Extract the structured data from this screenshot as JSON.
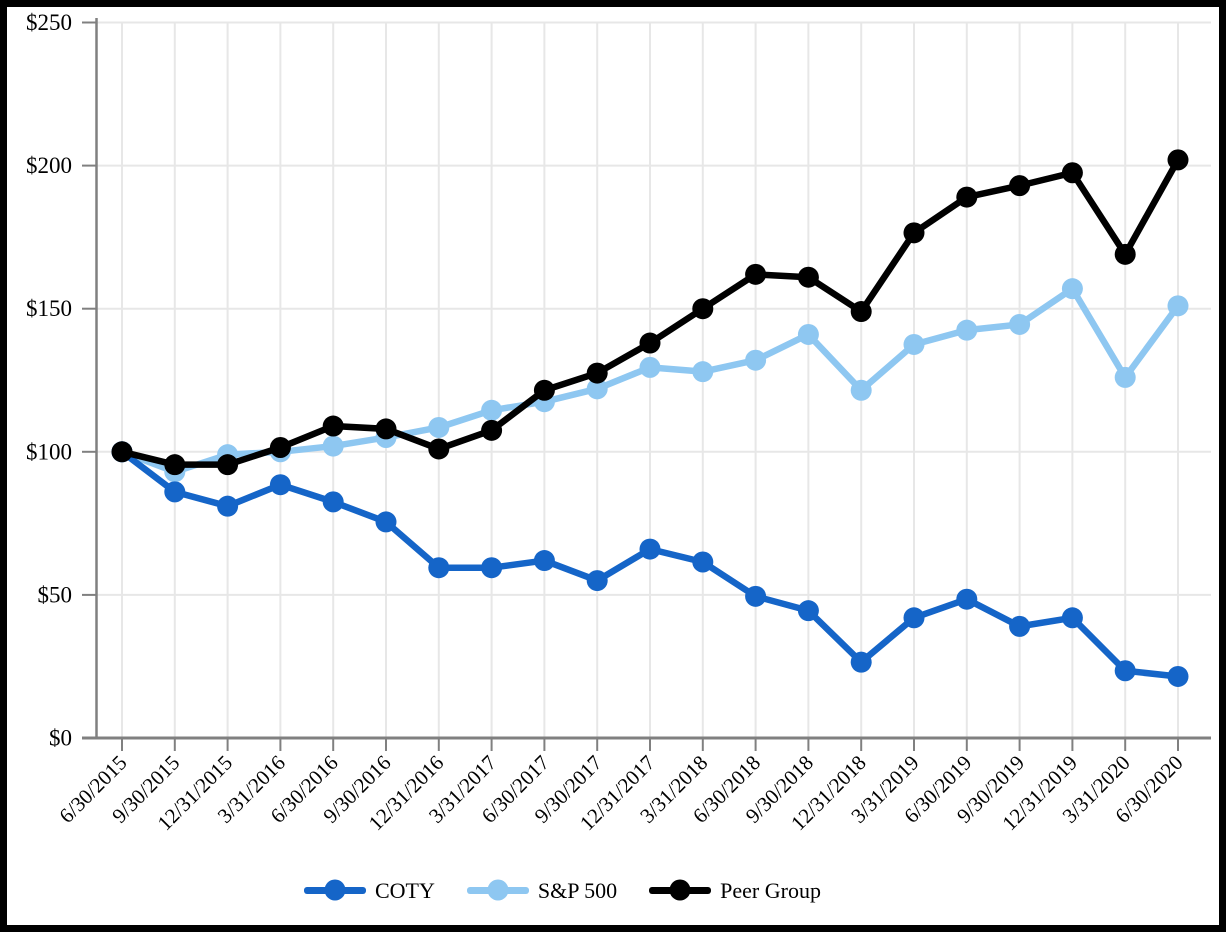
{
  "chart_data": {
    "type": "line",
    "title": "",
    "xlabel": "",
    "ylabel": "",
    "x": [
      "6/30/2015",
      "9/30/2015",
      "12/31/2015",
      "3/31/2016",
      "6/30/2016",
      "9/30/2016",
      "12/31/2016",
      "3/31/2017",
      "6/30/2017",
      "9/30/2017",
      "12/31/2017",
      "3/31/2018",
      "6/30/2018",
      "9/30/2018",
      "12/31/2018",
      "3/31/2019",
      "6/30/2019",
      "9/30/2019",
      "12/31/2019",
      "3/31/2020",
      "6/30/2020"
    ],
    "series": [
      {
        "name": "COTY",
        "color": "#1565c8",
        "values": [
          100,
          86,
          81,
          88.5,
          82.5,
          75.5,
          59.5,
          59.5,
          62,
          55,
          66,
          61.5,
          49.5,
          44.5,
          26.5,
          42,
          48.5,
          39,
          42,
          23.5,
          21.5
        ]
      },
      {
        "name": "S&P 500",
        "color": "#8ec7f1",
        "values": [
          100,
          93,
          99,
          100,
          102,
          105,
          108.5,
          114.5,
          117.5,
          122,
          129.5,
          128,
          132,
          141,
          121.5,
          137.5,
          142.5,
          144.5,
          157,
          126,
          151
        ]
      },
      {
        "name": "Peer Group",
        "color": "#000000",
        "values": [
          100,
          95.5,
          95.5,
          101.5,
          109,
          108,
          101,
          107.5,
          121.5,
          127.5,
          138,
          150,
          162,
          161,
          149,
          176.5,
          189,
          193,
          197.5,
          169,
          202
        ]
      }
    ],
    "y_ticks": [
      {
        "label": "$0",
        "value": 0
      },
      {
        "label": "$50",
        "value": 50
      },
      {
        "label": "$100",
        "value": 100
      },
      {
        "label": "$150",
        "value": 150
      },
      {
        "label": "$200",
        "value": 200
      },
      {
        "label": "$250",
        "value": 250
      }
    ],
    "ylim": [
      0,
      250
    ],
    "grid": true,
    "legend_position": "bottom",
    "marker": "circle",
    "grid_color": "#e7e7e7",
    "axis_color": "#808080",
    "text_color": "#000000",
    "border_color": "#000000"
  }
}
